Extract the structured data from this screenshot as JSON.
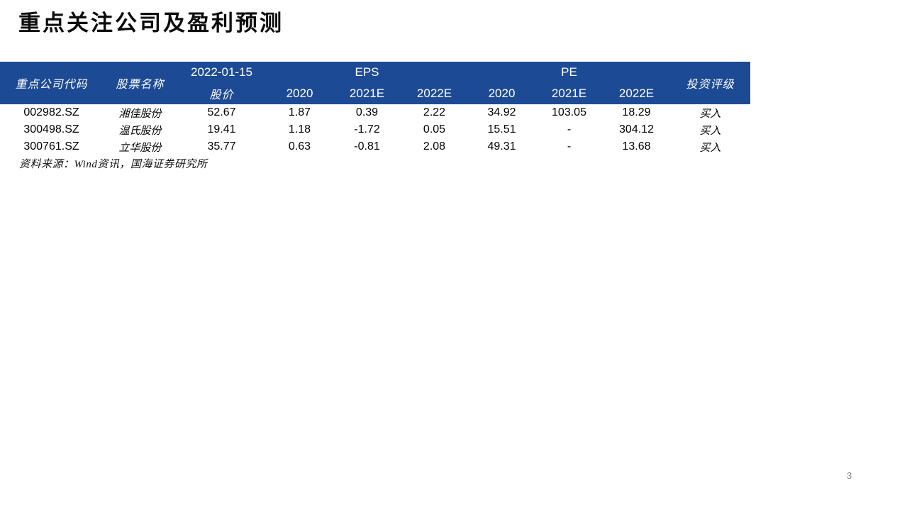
{
  "page": {
    "title": "重点关注公司及盈利预测",
    "page_number": "3"
  },
  "colors": {
    "header_bg": "#1d4a94",
    "header_text": "#ffffff",
    "body_text": "#000000",
    "page_number_gray": "#8a8a8a"
  },
  "table": {
    "header": {
      "col_code": "重点公司代码",
      "col_name": "股票名称",
      "date": "2022-01-15",
      "price_label": "股价",
      "eps_group": "EPS",
      "pe_group": "PE",
      "eps_cols": [
        "2020",
        "2021E",
        "2022E"
      ],
      "pe_cols": [
        "2020",
        "2021E",
        "2022E"
      ],
      "col_rating": "投资评级"
    },
    "rows": [
      {
        "code": "002982.SZ",
        "name": "湘佳股份",
        "price": "52.67",
        "eps_2020": "1.87",
        "eps_2021e": "0.39",
        "eps_2022e": "2.22",
        "pe_2020": "34.92",
        "pe_2021e": "103.05",
        "pe_2022e": "18.29",
        "rating": "买入"
      },
      {
        "code": "300498.SZ",
        "name": "温氏股份",
        "price": "19.41",
        "eps_2020": "1.18",
        "eps_2021e": "-1.72",
        "eps_2022e": "0.05",
        "pe_2020": "15.51",
        "pe_2021e": "-",
        "pe_2022e": "304.12",
        "rating": "买入"
      },
      {
        "code": "300761.SZ",
        "name": "立华股份",
        "price": "35.77",
        "eps_2020": "0.63",
        "eps_2021e": "-0.81",
        "eps_2022e": "2.08",
        "pe_2020": "49.31",
        "pe_2021e": "-",
        "pe_2022e": "13.68",
        "rating": "买入"
      }
    ],
    "source_note": "资料来源：Wind资讯，国海证券研究所"
  }
}
